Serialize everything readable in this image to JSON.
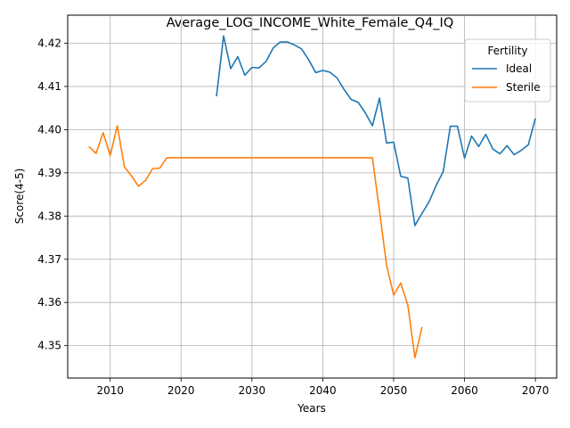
{
  "chart_data": {
    "type": "line",
    "title": "Average_LOG_INCOME_White_Female_Q4_IQ",
    "xlabel": "Years",
    "ylabel": "Score(4-5)",
    "xlim": [
      2004,
      2073
    ],
    "ylim": [
      4.3425,
      4.4265
    ],
    "xticks": [
      2010,
      2020,
      2030,
      2040,
      2050,
      2060,
      2070
    ],
    "yticks": [
      4.35,
      4.36,
      4.37,
      4.38,
      4.39,
      4.4,
      4.41,
      4.42
    ],
    "xtick_labels": [
      "2010",
      "2020",
      "2030",
      "2040",
      "2050",
      "2060",
      "2070"
    ],
    "ytick_labels": [
      "4.35",
      "4.36",
      "4.37",
      "4.38",
      "4.39",
      "4.40",
      "4.41",
      "4.42"
    ],
    "grid": true,
    "legend": {
      "title": "Fertility",
      "placement": "top-right"
    },
    "series": [
      {
        "name": "Ideal",
        "color": "#1f77b4",
        "x": [
          2025,
          2026,
          2027,
          2028,
          2029,
          2030,
          2031,
          2032,
          2033,
          2034,
          2035,
          2036,
          2037,
          2038,
          2039,
          2040,
          2041,
          2042,
          2043,
          2044,
          2045,
          2046,
          2047,
          2048,
          2049,
          2050,
          2051,
          2052,
          2053,
          2054,
          2055,
          2056,
          2057,
          2058,
          2059,
          2060,
          2061,
          2062,
          2063,
          2064,
          2065,
          2066,
          2067,
          2068,
          2069,
          2070
        ],
        "y": [
          4.4077,
          4.4217,
          4.4141,
          4.4169,
          4.4126,
          4.4144,
          4.4143,
          4.4158,
          4.4189,
          4.4203,
          4.4203,
          4.4196,
          4.4187,
          4.4162,
          4.4132,
          4.4137,
          4.4133,
          4.412,
          4.4093,
          4.407,
          4.4063,
          4.4039,
          4.4009,
          4.4073,
          4.3969,
          4.3971,
          4.3892,
          4.3888,
          4.3778,
          4.3806,
          4.3833,
          4.3871,
          4.3903,
          4.4008,
          4.4008,
          4.3934,
          4.3985,
          4.3961,
          4.3989,
          4.3955,
          4.3944,
          4.3963,
          4.3942,
          4.3952,
          4.3965,
          4.4026
        ]
      },
      {
        "name": "Sterile",
        "color": "#ff7f0e",
        "x": [
          2007,
          2008,
          2009,
          2010,
          2011,
          2012,
          2013,
          2014,
          2015,
          2016,
          2017,
          2018,
          2019,
          2020,
          2025,
          2030,
          2035,
          2040,
          2045,
          2047,
          2048,
          2049,
          2050,
          2051,
          2052,
          2053,
          2054
        ],
        "y": [
          4.3961,
          4.3945,
          4.3993,
          4.394,
          4.4009,
          4.3914,
          4.3893,
          4.3869,
          4.3883,
          4.391,
          4.3911,
          4.3935,
          4.3935,
          4.3935,
          4.3935,
          4.3935,
          4.3935,
          4.3935,
          4.3935,
          4.3935,
          4.3812,
          4.3686,
          4.3617,
          4.3645,
          4.3594,
          4.3472,
          4.3543
        ]
      }
    ]
  }
}
